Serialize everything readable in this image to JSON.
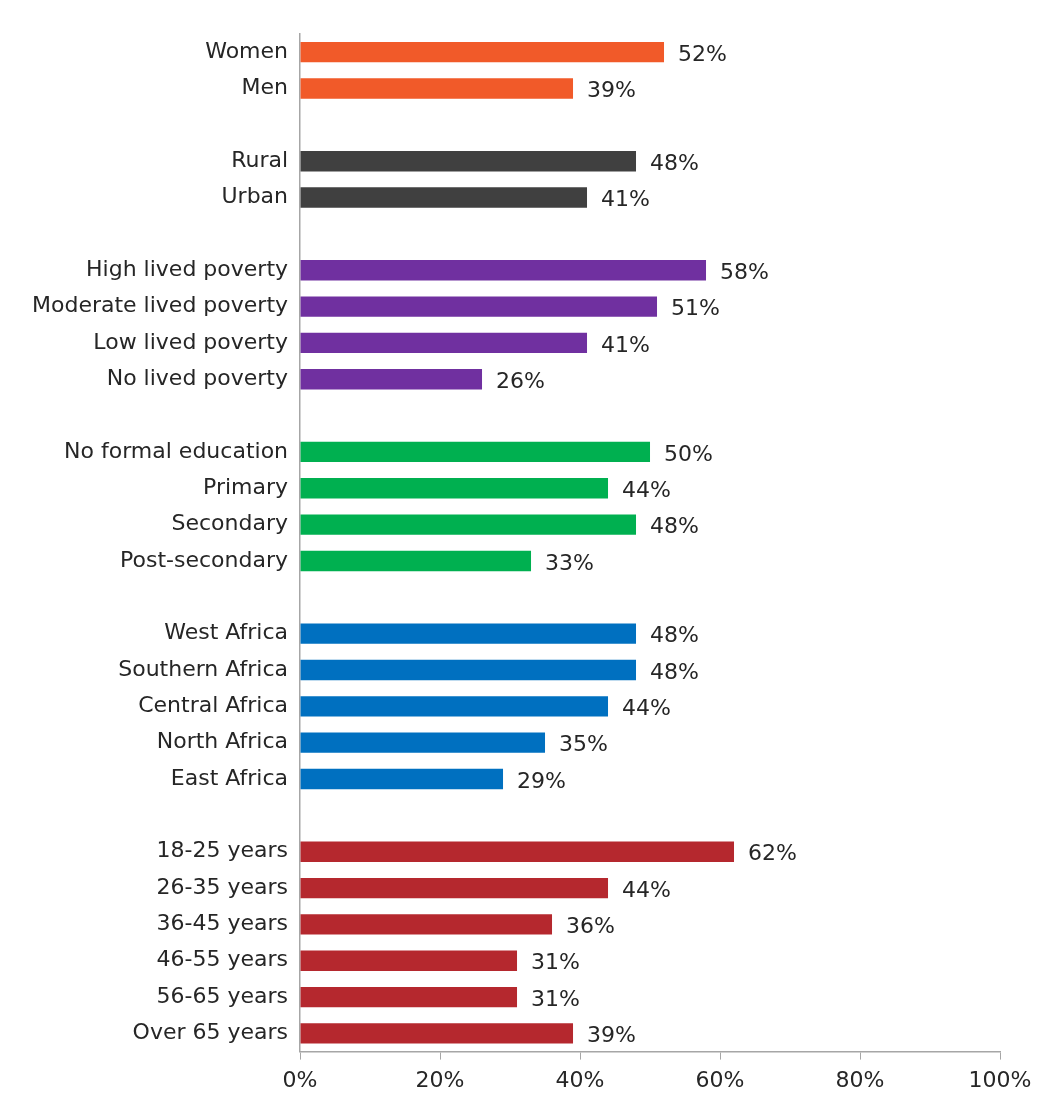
{
  "chart_data": {
    "type": "bar",
    "orientation": "horizontal",
    "categories": [
      "Women",
      "Men",
      null,
      "Rural",
      "Urban",
      null,
      "High lived poverty",
      "Moderate lived poverty",
      "Low lived poverty",
      "No lived poverty",
      null,
      "No formal education",
      "Primary",
      "Secondary",
      "Post-secondary",
      null,
      "West Africa",
      "Southern Africa",
      "Central Africa",
      "North Africa",
      "East Africa",
      null,
      "18-25 years",
      "26-35 years",
      "36-45 years",
      "46-55 years",
      "56-65 years",
      "Over 65 years"
    ],
    "values": [
      52,
      39,
      null,
      48,
      41,
      null,
      58,
      51,
      41,
      26,
      null,
      50,
      44,
      48,
      33,
      null,
      48,
      48,
      44,
      35,
      29,
      null,
      62,
      44,
      36,
      31,
      31,
      39
    ],
    "value_labels": [
      "52%",
      "39%",
      null,
      "48%",
      "41%",
      null,
      "58%",
      "51%",
      "41%",
      "26%",
      null,
      "50%",
      "44%",
      "48%",
      "33%",
      null,
      "48%",
      "48%",
      "44%",
      "35%",
      "29%",
      null,
      "62%",
      "44%",
      "36%",
      "31%",
      "31%",
      "39%"
    ],
    "colors": [
      "#f15a29",
      "#f15a29",
      null,
      "#404040",
      "#404040",
      null,
      "#7030a0",
      "#7030a0",
      "#7030a0",
      "#7030a0",
      null,
      "#00b050",
      "#00b050",
      "#00b050",
      "#00b050",
      null,
      "#0070c0",
      "#0070c0",
      "#0070c0",
      "#0070c0",
      "#0070c0",
      null,
      "#b5282e",
      "#b5282e",
      "#b5282e",
      "#b5282e",
      "#b5282e",
      "#b5282e"
    ],
    "xlim": [
      0,
      100
    ],
    "xticks": [
      {
        "value": 0,
        "label": "0%"
      },
      {
        "value": 20,
        "label": "20%"
      },
      {
        "value": 40,
        "label": "40%"
      },
      {
        "value": 60,
        "label": "60%"
      },
      {
        "value": 80,
        "label": "80%"
      },
      {
        "value": 100,
        "label": "100%"
      }
    ],
    "grid": false,
    "legend": false
  }
}
